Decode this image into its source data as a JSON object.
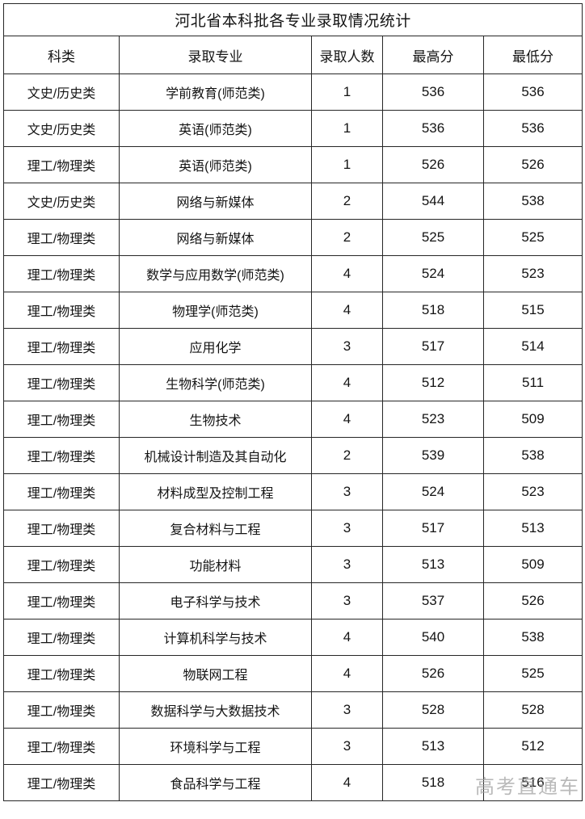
{
  "table": {
    "title": "河北省本科批各专业录取情况统计",
    "headers": [
      "科类",
      "录取专业",
      "录取人数",
      "最高分",
      "最低分"
    ],
    "rows": [
      [
        "文史/历史类",
        "学前教育(师范类)",
        "1",
        "536",
        "536"
      ],
      [
        "文史/历史类",
        "英语(师范类)",
        "1",
        "536",
        "536"
      ],
      [
        "理工/物理类",
        "英语(师范类)",
        "1",
        "526",
        "526"
      ],
      [
        "文史/历史类",
        "网络与新媒体",
        "2",
        "544",
        "538"
      ],
      [
        "理工/物理类",
        "网络与新媒体",
        "2",
        "525",
        "525"
      ],
      [
        "理工/物理类",
        "数学与应用数学(师范类)",
        "4",
        "524",
        "523"
      ],
      [
        "理工/物理类",
        "物理学(师范类)",
        "4",
        "518",
        "515"
      ],
      [
        "理工/物理类",
        "应用化学",
        "3",
        "517",
        "514"
      ],
      [
        "理工/物理类",
        "生物科学(师范类)",
        "4",
        "512",
        "511"
      ],
      [
        "理工/物理类",
        "生物技术",
        "4",
        "523",
        "509"
      ],
      [
        "理工/物理类",
        "机械设计制造及其自动化",
        "2",
        "539",
        "538"
      ],
      [
        "理工/物理类",
        "材料成型及控制工程",
        "3",
        "524",
        "523"
      ],
      [
        "理工/物理类",
        "复合材料与工程",
        "3",
        "517",
        "513"
      ],
      [
        "理工/物理类",
        "功能材料",
        "3",
        "513",
        "509"
      ],
      [
        "理工/物理类",
        "电子科学与技术",
        "3",
        "537",
        "526"
      ],
      [
        "理工/物理类",
        "计算机科学与技术",
        "4",
        "540",
        "538"
      ],
      [
        "理工/物理类",
        "物联网工程",
        "4",
        "526",
        "525"
      ],
      [
        "理工/物理类",
        "数据科学与大数据技术",
        "3",
        "528",
        "528"
      ],
      [
        "理工/物理类",
        "环境科学与工程",
        "3",
        "513",
        "512"
      ],
      [
        "理工/物理类",
        "食品科学与工程",
        "4",
        "518",
        "516"
      ]
    ]
  },
  "watermark": {
    "text": "高考直通车"
  },
  "colors": {
    "border": "#262626",
    "text": "#141414",
    "watermark": "#a3a3a3",
    "background": "#ffffff"
  }
}
